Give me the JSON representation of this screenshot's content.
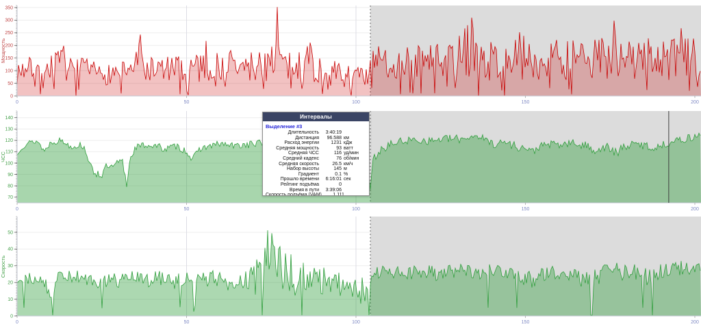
{
  "selection": {
    "label": "Выделение #3",
    "start_km": 104.24,
    "end_km": 202,
    "region_fill": "#dcdcdc"
  },
  "axes": {
    "x_tick_label_color": "#7b86c2",
    "axis_line_color": "#c3c7d3"
  },
  "popup": {
    "header": "Интервалы",
    "header_bg": "#3a4464",
    "selection_label": "Выделение #3",
    "title_color": "#2626d8",
    "rows": [
      {
        "label": "Длительность",
        "value": "3:40:19",
        "unit": ""
      },
      {
        "label": "Дистанция",
        "value": "96.588",
        "unit": "км"
      },
      {
        "label": "Расход энергии",
        "value": "1231",
        "unit": "кДж"
      },
      {
        "label": "Средняя мощность",
        "value": "93",
        "unit": "ватт"
      },
      {
        "label": "Средняя ЧСС",
        "value": "116",
        "unit": "уд/мин"
      },
      {
        "label": "Средний каденс",
        "value": "76",
        "unit": "об/мин"
      },
      {
        "label": "Средняя скорость",
        "value": "26.5",
        "unit": "км/ч"
      },
      {
        "label": "Набор высоты",
        "value": "145",
        "unit": "м"
      },
      {
        "label": "Градиент",
        "value": "0.1",
        "unit": "%"
      },
      {
        "label": "Прошло времени",
        "value": "6:16:01",
        "unit": "сек"
      },
      {
        "label": "Рейтинг подъёма",
        "value": "0",
        "unit": ""
      },
      {
        "label": "Время в пути",
        "value": "3:39:06",
        "unit": ""
      },
      {
        "label": "Скорость подъёма (VAM)",
        "value": "1.111",
        "unit": ""
      }
    ]
  },
  "chart_data": [
    {
      "id": "power",
      "type": "area",
      "ylabel": "Мощность",
      "line_color": "#c80000",
      "fill_opacity": 0.24,
      "label_color": "#c04848",
      "y_ticks": [
        0,
        50,
        100,
        150,
        200,
        250,
        300,
        350
      ],
      "x_ticks": [
        0,
        50,
        100,
        150,
        200
      ],
      "x_range": [
        0,
        202
      ],
      "y_range": [
        0,
        358
      ],
      "drop_prob": 0.09,
      "drop_max": 40,
      "envelope": [
        [
          0,
          55,
          150
        ],
        [
          4,
          65,
          155
        ],
        [
          8,
          55,
          150
        ],
        [
          13.5,
          65,
          200
        ],
        [
          14.5,
          60,
          215
        ],
        [
          15.5,
          55,
          150
        ],
        [
          20,
          55,
          150
        ],
        [
          24,
          40,
          130
        ],
        [
          28,
          45,
          135
        ],
        [
          31,
          55,
          150
        ],
        [
          35.5,
          60,
          200
        ],
        [
          36.5,
          55,
          240
        ],
        [
          37.5,
          55,
          160
        ],
        [
          42,
          55,
          160
        ],
        [
          46,
          50,
          160
        ],
        [
          50,
          55,
          175
        ],
        [
          54,
          50,
          200
        ],
        [
          55.5,
          55,
          230
        ],
        [
          57,
          50,
          170
        ],
        [
          60,
          55,
          185
        ],
        [
          63,
          55,
          200
        ],
        [
          66,
          45,
          160
        ],
        [
          70,
          55,
          185
        ],
        [
          73,
          55,
          200
        ],
        [
          75.5,
          70,
          260
        ],
        [
          76.5,
          90,
          350
        ],
        [
          77.5,
          60,
          260
        ],
        [
          79,
          50,
          170
        ],
        [
          83,
          55,
          175
        ],
        [
          86.5,
          55,
          260
        ],
        [
          88,
          45,
          160
        ],
        [
          91,
          40,
          150
        ],
        [
          95,
          30,
          135
        ],
        [
          99,
          28,
          125
        ],
        [
          102,
          20,
          115
        ],
        [
          103.8,
          15,
          105
        ],
        [
          104.3,
          55,
          185
        ],
        [
          108,
          65,
          205
        ],
        [
          113,
          60,
          195
        ],
        [
          118,
          65,
          205
        ],
        [
          124,
          60,
          210
        ],
        [
          129,
          65,
          225
        ],
        [
          133.5,
          75,
          300
        ],
        [
          134.5,
          75,
          310
        ],
        [
          135.5,
          65,
          215
        ],
        [
          140,
          60,
          215
        ],
        [
          145,
          60,
          235
        ],
        [
          149.5,
          65,
          260
        ],
        [
          151,
          60,
          215
        ],
        [
          156,
          60,
          210
        ],
        [
          161,
          65,
          230
        ],
        [
          166,
          60,
          215
        ],
        [
          170,
          60,
          220
        ],
        [
          175.5,
          70,
          290
        ],
        [
          176.5,
          70,
          300
        ],
        [
          177.5,
          60,
          225
        ],
        [
          182,
          60,
          230
        ],
        [
          186,
          65,
          245
        ],
        [
          190,
          60,
          220
        ],
        [
          193.5,
          60,
          225
        ],
        [
          195.8,
          65,
          270
        ],
        [
          197,
          60,
          230
        ],
        [
          202,
          70,
          230
        ]
      ],
      "spikes": [
        [
          36.5,
          243
        ],
        [
          76.6,
          352
        ],
        [
          134,
          310
        ],
        [
          176,
          298
        ],
        [
          196,
          268
        ]
      ]
    },
    {
      "id": "hr",
      "type": "area",
      "ylabel": "ЧСС",
      "line_color": "#2f9e3c",
      "fill_opacity": 0.42,
      "label_color": "#44a049",
      "y_ticks": [
        70,
        80,
        90,
        100,
        110,
        120,
        130,
        140
      ],
      "x_ticks": [
        0,
        50,
        100,
        150,
        200
      ],
      "x_range": [
        0,
        202
      ],
      "y_range": [
        65,
        146
      ],
      "cursor_km": 192.3,
      "envelope": [
        [
          0,
          104,
          109
        ],
        [
          1,
          111,
          116
        ],
        [
          3,
          115,
          120
        ],
        [
          6,
          117,
          122
        ],
        [
          8,
          108,
          113
        ],
        [
          10,
          116,
          121
        ],
        [
          13,
          117,
          123
        ],
        [
          16,
          112,
          117
        ],
        [
          19,
          113,
          119
        ],
        [
          20.5,
          107,
          114
        ],
        [
          21.5,
          93,
          100
        ],
        [
          23,
          88,
          96
        ],
        [
          25,
          86,
          93
        ],
        [
          26.5,
          94,
          101
        ],
        [
          28,
          91,
          99
        ],
        [
          29.5,
          96,
          103
        ],
        [
          31,
          99,
          106
        ],
        [
          32.3,
          76,
          88
        ],
        [
          33.5,
          103,
          109
        ],
        [
          35,
          111,
          117
        ],
        [
          38,
          113,
          119
        ],
        [
          41,
          112,
          118
        ],
        [
          44,
          109,
          116
        ],
        [
          47,
          112,
          118
        ],
        [
          50,
          107,
          114
        ],
        [
          52,
          99,
          107
        ],
        [
          54,
          110,
          116
        ],
        [
          57,
          112,
          118
        ],
        [
          60,
          114,
          120
        ],
        [
          64,
          112,
          118
        ],
        [
          68,
          113,
          120
        ],
        [
          72,
          114,
          121
        ],
        [
          76,
          112,
          119
        ],
        [
          80,
          113,
          120
        ],
        [
          84,
          114,
          121
        ],
        [
          88,
          112,
          119
        ],
        [
          92,
          111,
          118
        ],
        [
          95,
          113,
          119
        ],
        [
          98,
          109,
          116
        ],
        [
          100,
          103,
          111
        ],
        [
          102,
          95,
          105
        ],
        [
          103.5,
          86,
          97
        ],
        [
          104.2,
          71,
          88
        ],
        [
          105,
          99,
          107
        ],
        [
          107,
          107,
          114
        ],
        [
          110,
          113,
          120
        ],
        [
          114,
          116,
          123
        ],
        [
          118,
          117,
          124
        ],
        [
          122,
          116,
          123
        ],
        [
          126,
          118,
          125
        ],
        [
          130,
          117,
          125
        ],
        [
          134,
          120,
          127
        ],
        [
          136,
          121,
          128
        ],
        [
          138,
          117,
          124
        ],
        [
          141,
          113,
          121
        ],
        [
          144,
          115,
          122
        ],
        [
          147,
          111,
          119
        ],
        [
          150,
          109,
          117
        ],
        [
          152,
          105,
          114
        ],
        [
          154,
          111,
          118
        ],
        [
          157,
          113,
          120
        ],
        [
          160,
          112,
          120
        ],
        [
          164,
          114,
          121
        ],
        [
          168,
          111,
          119
        ],
        [
          171,
          107,
          116
        ],
        [
          174,
          111,
          118
        ],
        [
          177,
          103,
          113
        ],
        [
          179,
          111,
          118
        ],
        [
          182,
          113,
          120
        ],
        [
          185,
          112,
          120
        ],
        [
          188,
          109,
          117
        ],
        [
          190,
          112,
          119
        ],
        [
          193,
          115,
          122
        ],
        [
          196,
          117,
          124
        ],
        [
          199,
          119,
          126
        ],
        [
          202,
          122,
          128
        ]
      ]
    },
    {
      "id": "speed",
      "type": "area",
      "ylabel": "Скорость",
      "line_color": "#2f9e3c",
      "fill_opacity": 0.4,
      "label_color": "#44a049",
      "y_ticks": [
        0,
        10,
        20,
        30,
        40,
        50
      ],
      "x_ticks": [
        0,
        50,
        100,
        150,
        200
      ],
      "x_range": [
        0,
        202
      ],
      "y_range": [
        0,
        59
      ],
      "drop_prob": 0.012,
      "drop_max": 8,
      "drops": [
        10.5,
        72.5,
        84,
        104,
        169.5,
        187.5
      ],
      "envelope": [
        [
          0,
          18,
          26
        ],
        [
          4,
          19,
          27
        ],
        [
          8,
          17,
          25
        ],
        [
          10,
          8,
          20
        ],
        [
          12,
          18,
          27
        ],
        [
          16,
          20,
          28
        ],
        [
          20,
          18,
          26
        ],
        [
          24,
          15,
          24
        ],
        [
          27,
          18,
          26
        ],
        [
          30,
          16,
          25
        ],
        [
          34,
          19,
          27
        ],
        [
          38,
          17,
          26
        ],
        [
          42,
          18,
          27
        ],
        [
          46,
          15,
          25
        ],
        [
          50,
          18,
          26
        ],
        [
          54,
          16,
          26
        ],
        [
          58,
          18,
          28
        ],
        [
          62,
          14,
          25
        ],
        [
          66,
          17,
          27
        ],
        [
          70,
          12,
          30
        ],
        [
          72,
          10,
          42
        ],
        [
          74,
          15,
          52
        ],
        [
          76,
          12,
          48
        ],
        [
          78,
          14,
          40
        ],
        [
          80,
          12,
          38
        ],
        [
          83,
          10,
          44
        ],
        [
          86,
          12,
          36
        ],
        [
          89,
          10,
          30
        ],
        [
          92,
          14,
          28
        ],
        [
          95,
          12,
          26
        ],
        [
          98,
          10,
          24
        ],
        [
          101,
          8,
          24
        ],
        [
          103,
          4,
          22
        ],
        [
          104.5,
          18,
          28
        ],
        [
          108,
          22,
          31
        ],
        [
          112,
          22,
          30
        ],
        [
          116,
          21,
          30
        ],
        [
          120,
          22,
          31
        ],
        [
          124,
          21,
          30
        ],
        [
          128,
          22,
          31
        ],
        [
          132,
          22,
          32
        ],
        [
          136,
          20,
          30
        ],
        [
          140,
          22,
          31
        ],
        [
          144,
          21,
          30
        ],
        [
          148,
          20,
          30
        ],
        [
          152,
          16,
          27
        ],
        [
          155,
          20,
          29
        ],
        [
          158,
          22,
          31
        ],
        [
          162,
          21,
          30
        ],
        [
          166,
          18,
          28
        ],
        [
          169,
          10,
          26
        ],
        [
          172,
          20,
          30
        ],
        [
          176,
          22,
          32
        ],
        [
          180,
          21,
          31
        ],
        [
          184,
          22,
          31
        ],
        [
          187,
          14,
          28
        ],
        [
          190,
          22,
          32
        ],
        [
          194,
          23,
          33
        ],
        [
          198,
          24,
          33
        ],
        [
          202,
          25,
          32
        ]
      ]
    }
  ]
}
